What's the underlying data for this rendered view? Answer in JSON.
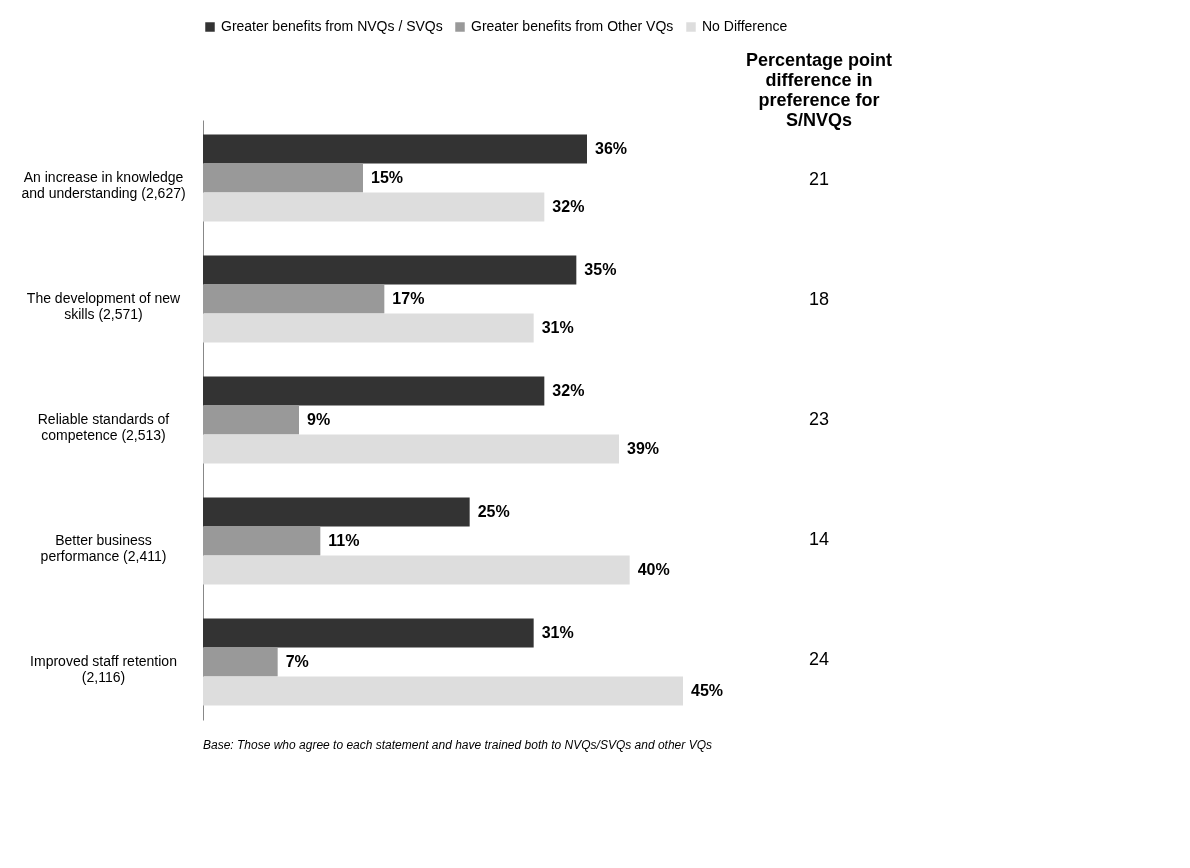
{
  "chart_data": {
    "type": "bar",
    "orientation": "horizontal",
    "legend": "top",
    "categories": [
      "An increase in knowledge and understanding (2,627)",
      "The development of new skills (2,571)",
      "Reliable standards of competence (2,513)",
      "Better business performance (2,411)",
      "Improved staff retention (2,116)"
    ],
    "series": [
      {
        "name": "Greater benefits from NVQs / SVQs",
        "color": "#333333",
        "values": [
          36,
          35,
          32,
          25,
          31
        ],
        "value_labels": [
          "36%",
          "35%",
          "32%",
          "25%",
          "31%"
        ]
      },
      {
        "name": "Greater benefits from Other VQs",
        "color": "#999999",
        "values": [
          15,
          17,
          9,
          11,
          7
        ],
        "value_labels": [
          "15%",
          "17%",
          "9%",
          "11%",
          "7%"
        ]
      },
      {
        "name": "No Difference",
        "color": "#dddddd",
        "values": [
          32,
          31,
          39,
          40,
          45
        ],
        "value_labels": [
          "32%",
          "31%",
          "39%",
          "40%",
          "45%"
        ]
      }
    ],
    "annotations": [
      "Percentage point difference in preference for S/NVQs",
      "21",
      "18",
      "23",
      "14",
      "24",
      "Base: Those who agree to each statement and have trained both to NVQs/SVQs and other VQs"
    ]
  }
}
